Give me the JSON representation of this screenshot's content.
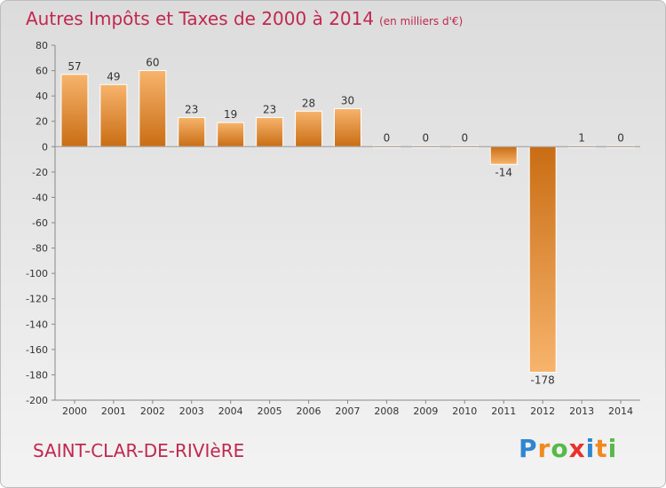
{
  "title": {
    "main": "Autres Impôts et Taxes de 2000 à 2014",
    "unit": "(en milliers d'€)"
  },
  "location": "SAINT-CLAR-DE-RIVIèRE",
  "brand": {
    "text": "Proxiti",
    "letters": [
      "P",
      "r",
      "o",
      "x",
      "i",
      "t",
      "i"
    ],
    "letter_colors": [
      "#2f86d1",
      "#f08a1f",
      "#57b947",
      "#e9312c",
      "#2f86d1",
      "#f08a1f",
      "#57b947"
    ]
  },
  "chart_data": {
    "type": "bar",
    "categories": [
      "2000",
      "2001",
      "2002",
      "2003",
      "2004",
      "2005",
      "2006",
      "2007",
      "2008",
      "2009",
      "2010",
      "2011",
      "2012",
      "2013",
      "2014"
    ],
    "values": [
      57,
      49,
      60,
      23,
      19,
      23,
      28,
      30,
      0,
      0,
      0,
      -14,
      -178,
      1,
      0
    ],
    "data_labels": [
      "57",
      "49",
      "60",
      "23",
      "19",
      "23",
      "28",
      "30",
      "0",
      "0",
      "0",
      "-14",
      "-178",
      "1",
      "0"
    ],
    "yticks": [
      80,
      60,
      40,
      20,
      0,
      -20,
      -40,
      -60,
      -80,
      -100,
      -120,
      -140,
      -160,
      -180,
      -200
    ],
    "ylim": [
      -200,
      80
    ],
    "grid": false,
    "bar_color": "#e08a2e",
    "bar_color_light": "#f7b46c",
    "bar_color_dark": "#c96d14"
  }
}
